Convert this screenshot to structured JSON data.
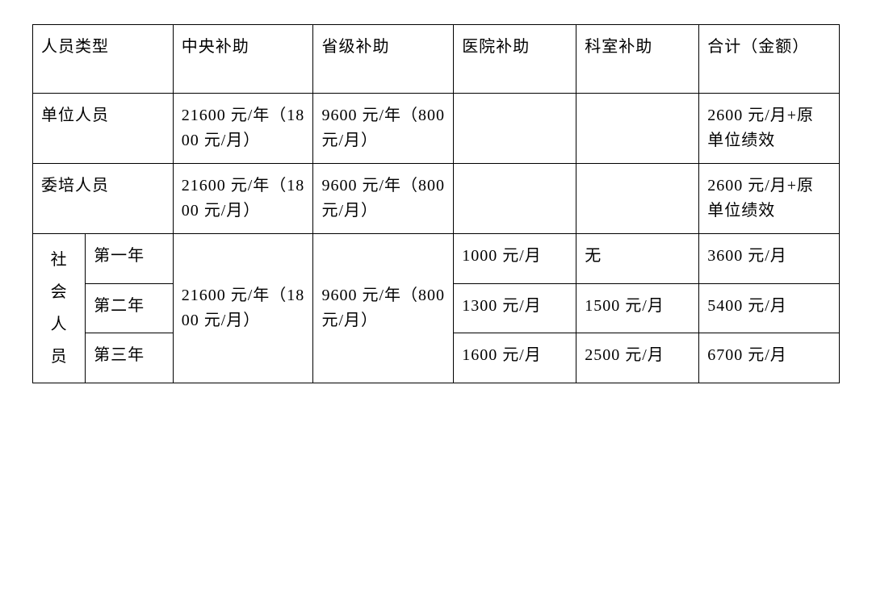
{
  "table": {
    "border_color": "#000000",
    "background_color": "#ffffff",
    "text_color": "#000000",
    "font_family": "SimSun",
    "font_size_pt": 15,
    "columns": [
      {
        "key": "type",
        "label": "人员类型",
        "width_pct": 8
      },
      {
        "key": "sub",
        "label": "",
        "width_pct": 8
      },
      {
        "key": "central",
        "label": "中央补助",
        "width_pct": 16
      },
      {
        "key": "province",
        "label": "省级补助",
        "width_pct": 16
      },
      {
        "key": "hospital",
        "label": "医院补助",
        "width_pct": 14
      },
      {
        "key": "dept",
        "label": "科室补助",
        "width_pct": 14
      },
      {
        "key": "total",
        "label": "合计（金额）",
        "width_pct": 16
      }
    ],
    "header": {
      "c0": "人员类型",
      "c2": "中央补助",
      "c3": "省级补助",
      "c4": "医院补助",
      "c5": "科室补助",
      "c6": "合计（金额）"
    },
    "rows": {
      "unit": {
        "label": "单位人员",
        "central": "21600 元/年（1800 元/月）",
        "province": "9600 元/年（800 元/月）",
        "hospital": "",
        "dept": "",
        "total": "2600 元/月+原单位绩效"
      },
      "entrust": {
        "label": "委培人员",
        "central": "21600 元/年（1800 元/月）",
        "province": "9600 元/年（800 元/月）",
        "hospital": "",
        "dept": "",
        "total": "2600 元/月+原单位绩效"
      },
      "social": {
        "label": "社会人员",
        "central": "21600 元/年（1800 元/月）",
        "province": "9600 元/年（800 元/月）",
        "y1": {
          "sub": "第一年",
          "hospital": "1000 元/月",
          "dept": "无",
          "total": "3600 元/月"
        },
        "y2": {
          "sub": "第二年",
          "hospital": "1300 元/月",
          "dept": "1500 元/月",
          "total": "5400 元/月"
        },
        "y3": {
          "sub": "第三年",
          "hospital": "1600 元/月",
          "dept": "2500 元/月",
          "total": "6700 元/月"
        }
      }
    }
  }
}
